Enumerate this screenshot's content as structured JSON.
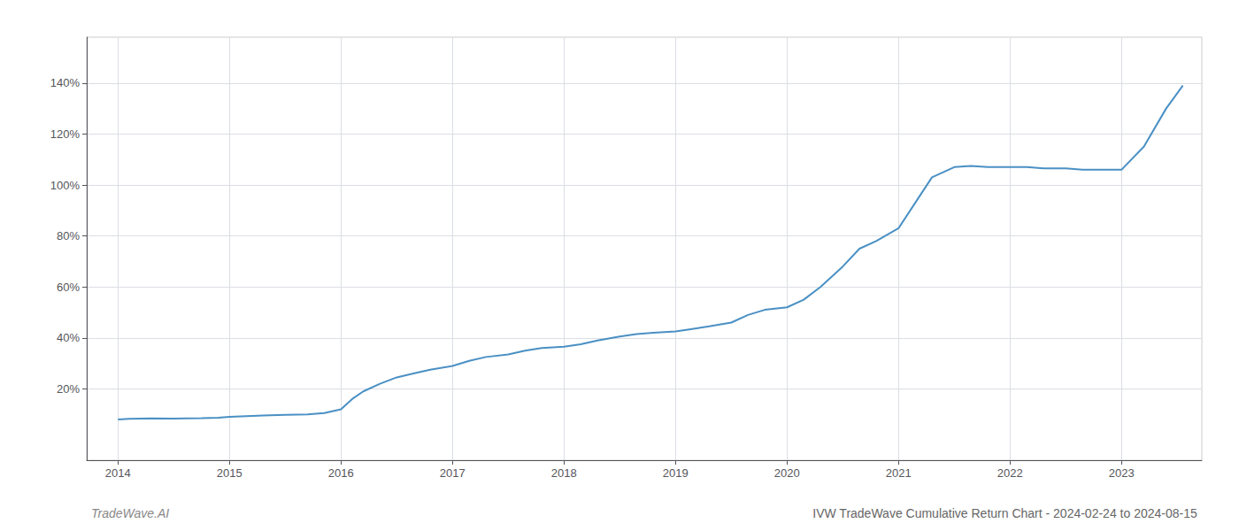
{
  "chart_data": {
    "type": "line",
    "title": "IVW TradeWave Cumulative Return Chart - 2024-02-24 to 2024-08-15",
    "annotations": [
      "TradeWave.AI"
    ],
    "color": "#4a90c4",
    "grid": true,
    "x": [
      2014.0,
      2014.1,
      2014.2,
      2014.3,
      2014.5,
      2014.6,
      2014.75,
      2014.9,
      2015.0,
      2015.1,
      2015.3,
      2015.5,
      2015.7,
      2015.85,
      2016.0,
      2016.1,
      2016.2,
      2016.35,
      2016.5,
      2016.65,
      2016.8,
      2017.0,
      2017.15,
      2017.3,
      2017.5,
      2017.65,
      2017.8,
      2018.0,
      2018.15,
      2018.3,
      2018.5,
      2018.65,
      2018.8,
      2019.0,
      2019.15,
      2019.3,
      2019.5,
      2019.65,
      2019.8,
      2020.0,
      2020.15,
      2020.3,
      2020.5,
      2020.65,
      2020.8,
      2021.0,
      2021.15,
      2021.3,
      2021.5,
      2021.65,
      2021.8,
      2022.0,
      2022.15,
      2022.3,
      2022.5,
      2022.65,
      2022.8,
      2023.0,
      2023.2,
      2023.4,
      2023.55
    ],
    "values": [
      8,
      8.2,
      8.3,
      8.4,
      8.3,
      8.4,
      8.5,
      8.7,
      9.0,
      9.2,
      9.5,
      9.8,
      10.0,
      10.5,
      12.0,
      16.0,
      19.0,
      22.0,
      24.5,
      26.0,
      27.5,
      29.0,
      31.0,
      32.5,
      33.5,
      35.0,
      36.0,
      36.5,
      37.5,
      39.0,
      40.5,
      41.5,
      42.0,
      42.5,
      43.5,
      44.5,
      46.0,
      49.0,
      51.0,
      52.0,
      55.0,
      60.0,
      68.0,
      75.0,
      78.0,
      83.0,
      93.0,
      103.0,
      107.0,
      107.5,
      107.0,
      107.0,
      107.0,
      106.5,
      106.5,
      106.0,
      106.0,
      106.0,
      115.0,
      130.0,
      139.0
    ],
    "xlim": [
      2013.72,
      2023.72
    ],
    "xticks": [
      2014,
      2015,
      2016,
      2017,
      2018,
      2019,
      2020,
      2021,
      2022,
      2023
    ],
    "ylim": [
      -8,
      158
    ],
    "yticks": [
      {
        "value": 20,
        "label": "20%"
      },
      {
        "value": 40,
        "label": "40%"
      },
      {
        "value": 60,
        "label": "60%"
      },
      {
        "value": 80,
        "label": "80%"
      },
      {
        "value": 100,
        "label": "100%"
      },
      {
        "value": 120,
        "label": "120%"
      },
      {
        "value": 140,
        "label": "140%"
      }
    ]
  }
}
